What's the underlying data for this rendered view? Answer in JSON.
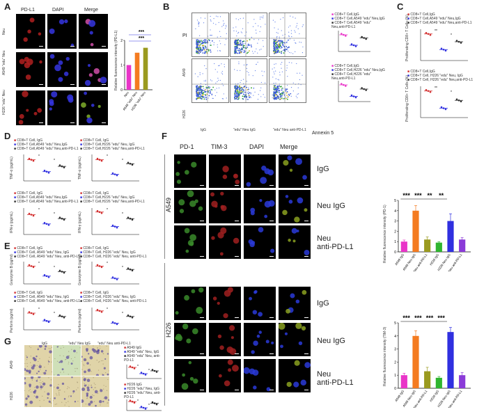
{
  "panels": {
    "A": "A",
    "B": "B",
    "C": "C",
    "D": "D",
    "E": "E",
    "F": "F",
    "G": "G"
  },
  "colors": {
    "magenta": "#e934c8",
    "orange": "#f47b20",
    "olive": "#9a9a1f",
    "green2": "#2fb52f",
    "blue": "#3030e0",
    "violet": "#8b3bd8",
    "red": "#d32f2f",
    "navy": "#2c2c8a"
  },
  "panelA": {
    "headers": [
      "PD-L1",
      "DAPI",
      "Merge"
    ],
    "rows": [
      "Neu",
      "A549 \"edu\" Neu",
      "H226 \"edu\" Neu"
    ],
    "ylabel": "Relative fluorescence intensity (PD-L1)",
    "sig": [
      "***",
      "***"
    ]
  },
  "panelB": {
    "axis_y": "PI",
    "axis_x": "Annexin 5",
    "rows": [
      "A549",
      "H226"
    ],
    "cols": [
      "IgG",
      "\"edu\" Neu IgG",
      "\"edu\" Neu anti-PD-L1"
    ],
    "legend_top": [
      "CD8+T Cell,IgG",
      "CD8+T Cell,A549 \"edu\" Neu,IgG",
      "CD8+T Cell,A549 \"edu\" Neu,anti-PD-L1"
    ],
    "legend_bot": [
      "CD8+T Cell,IgG",
      "CD8+T Cell,H226 \"edu\" Neu,IgG",
      "CD8+T Cell,H226 \"edu\" Neu,anti-PD-L1"
    ]
  },
  "panelC": {
    "legend_top": [
      "CD8+T Cell,IgG",
      "CD8+T Cell,A549 \"edu\" Neu,IgG",
      "CD8+T Cell,A549 \"edu\" Neu,anti-PD-L1"
    ],
    "legend_bot": [
      "CD8+T Cell,IgG",
      "CD8+T Cell, H226 \"edu\" Neu, IgG",
      "CD8+T Cell, H226 \"edu\" Neu,anti-PD-L1"
    ],
    "ylabel_top": "Proliferating CD8+ T Cells (%)",
    "ylabel_bot": "Proliferating CD8+ T Cells (%)",
    "sig_top": [
      "**",
      "*"
    ],
    "sig_bot": [
      "**",
      "*"
    ]
  },
  "panelD": {
    "legend_left": [
      "CD8+T Cell, IgG",
      "CD8+T Cell,A549 \"edu\" Neu,IgG",
      "CD8+T Cell,A549 \"edu\" Neu,anti-PD-L1"
    ],
    "legend_right": [
      "CD8+T Cell, IgG",
      "CD8+T Cell,H226 \"edu\" Neu, IgG",
      "CD8+T Cell,H226 \"edu\" Neu,anti-PD-L1"
    ],
    "ylabels": [
      "TNF-α (pg/mL)",
      "TNF-α (pg/mL)",
      "IFN-γ (pg/mL)",
      "IFN-γ (pg/mL)"
    ]
  },
  "panelE": {
    "legend_left": [
      "CD8+T Cell, IgG",
      "CD8+T Cell, A549 \"edu\" Neu, IgG",
      "CD8+T Cell, A549 \"edu\" Neu, anti-PD-L1"
    ],
    "legend_right": [
      "CD8+T Cell, IgG",
      "CD8+T Cell, H226 \"edu\" Neu, IgG",
      "CD8+T Cell, H226 \"edu\" Neu, anti-PD-L1"
    ],
    "ylabels": [
      "Granzyme B (pg/ml)",
      "Granzyme B (pg/ml)",
      "Perforin (pg/ml)",
      "Perforin (pg/ml)"
    ]
  },
  "panelF": {
    "headers": [
      "PD-1",
      "TIM-3",
      "DAPI",
      "Merge"
    ],
    "cell_lines": [
      "A549",
      "H226"
    ],
    "row_labels_top": [
      "IgG",
      "Neu IgG",
      "Neu\nanti-PD-L1"
    ],
    "row_labels_bot": [
      "IgG",
      "Neu IgG",
      "Neu\nanti-PD-L1"
    ],
    "chart_top_ylabel": "Relative fluorescence intensity (PD-1)",
    "chart_bot_ylabel": "Relative fluorescence intensity (TIM-3)",
    "sig_top": [
      "***",
      "***",
      "**",
      "**"
    ],
    "sig_bot": [
      "***",
      "***",
      "***",
      "***"
    ]
  },
  "panelG": {
    "headers": [
      "IgG",
      "\"edu\" Neu IgG",
      "\"edu\" Neu anti-PD-L1"
    ],
    "rows": [
      "A549",
      "H226"
    ],
    "legend_top": [
      "A549 IgG",
      "A549 \"edu\" Neu, IgG",
      "A549 \"edu\" Neu, anti-PD-L1"
    ],
    "legend_bot": [
      "H226 IgG",
      "H226 \"edu\" Neu, IgG",
      "H226 \"edu\" Neu, anti-PD-L1"
    ]
  },
  "chart_data": [
    {
      "type": "bar",
      "id": "A-pdl1",
      "categories": [
        "Neu",
        "A549 \"edu\" Neu",
        "H226 \"edu\" Neu"
      ],
      "values": [
        1.0,
        1.5,
        1.7
      ],
      "ylim": [
        0,
        2
      ],
      "colors": [
        "#e934c8",
        "#f47b20",
        "#9a9a1f"
      ]
    },
    {
      "type": "bar",
      "id": "F-pd1",
      "categories": [
        "A549 IgG",
        "A549 Neu IgG",
        "A549 Neu anti-PD-L1",
        "H226 IgG",
        "H226 Neu IgG",
        "H226 Neu anti-PD-L1"
      ],
      "values": [
        1.0,
        4.0,
        1.2,
        0.9,
        3.0,
        1.2
      ],
      "errors": [
        0.15,
        0.5,
        0.25,
        0.1,
        0.7,
        0.2
      ],
      "ylim": [
        0,
        5
      ],
      "yticks": [
        0,
        1,
        2,
        3,
        4,
        5
      ],
      "colors": [
        "#e934c8",
        "#f47b20",
        "#9a9a1f",
        "#2fb52f",
        "#3030e0",
        "#8b3bd8"
      ]
    },
    {
      "type": "bar",
      "id": "F-tim3",
      "categories": [
        "A549 IgG",
        "A549 Neu IgG",
        "A549 Neu anti-PD-L1",
        "H226 IgG",
        "H226 Neu IgG",
        "H226 Neu anti-PD-L1"
      ],
      "values": [
        1.0,
        4.0,
        1.3,
        0.8,
        4.3,
        1.0
      ],
      "errors": [
        0.15,
        0.4,
        0.3,
        0.1,
        0.35,
        0.2
      ],
      "ylim": [
        0,
        5
      ],
      "yticks": [
        0,
        1,
        2,
        3,
        4,
        5
      ],
      "colors": [
        "#e934c8",
        "#f47b20",
        "#9a9a1f",
        "#2fb52f",
        "#3030e0",
        "#8b3bd8"
      ]
    },
    {
      "type": "scatter",
      "id": "C-top",
      "categories": [
        "IgG",
        "Neu IgG",
        "Neu anti-PD-L1"
      ],
      "values": [
        55,
        40,
        48
      ]
    },
    {
      "type": "scatter",
      "id": "C-bot",
      "categories": [
        "IgG",
        "Neu IgG",
        "Neu anti-PD-L1"
      ],
      "values": [
        60,
        42,
        50
      ]
    }
  ]
}
